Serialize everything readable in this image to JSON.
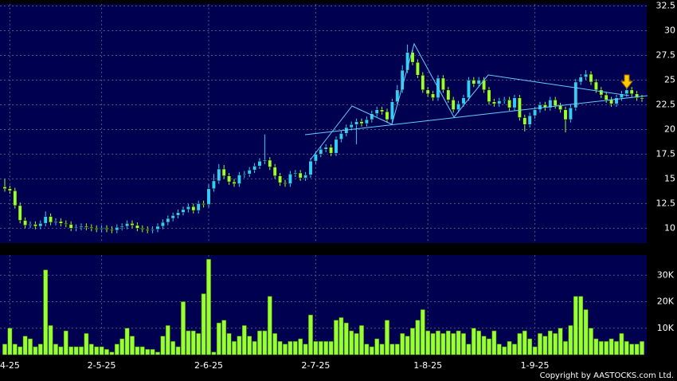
{
  "chart_data": {
    "type": "candlestick",
    "categories": [
      null,
      "4-25",
      null,
      null,
      null,
      null,
      null,
      null,
      null,
      null,
      null,
      null,
      null,
      null,
      null,
      null,
      null,
      null,
      null,
      "2-5-25",
      null,
      null,
      null,
      null,
      null,
      null,
      null,
      null,
      null,
      null,
      null,
      null,
      null,
      null,
      null,
      null,
      null,
      null,
      null,
      null,
      "2-6-25",
      null,
      null,
      null,
      null,
      null,
      null,
      null,
      null,
      null,
      null,
      null,
      null,
      null,
      null,
      null,
      null,
      null,
      null,
      null,
      null,
      "2-7-25",
      null,
      null,
      null,
      null,
      null,
      null,
      null,
      null,
      null,
      null,
      null,
      null,
      null,
      null,
      null,
      null,
      null,
      null,
      null,
      null,
      null,
      "1-8-25",
      null,
      null,
      null,
      null,
      null,
      null,
      null,
      null,
      null,
      null,
      null,
      null,
      null,
      null,
      null,
      null,
      null,
      null,
      null,
      null,
      "1-9-25",
      null,
      null,
      null,
      null,
      null,
      null,
      null,
      null,
      null,
      null,
      null,
      null,
      null,
      null,
      null,
      null,
      null,
      null,
      null,
      null,
      null
    ],
    "open": [
      14.2,
      14.0,
      13.8,
      12.3,
      10.8,
      10.3,
      10.4,
      10.2,
      10.5,
      11.2,
      10.6,
      10.7,
      10.5,
      10.4,
      10.0,
      10.1,
      10.2,
      10.1,
      10.0,
      9.9,
      10.0,
      9.9,
      9.8,
      10.1,
      10.2,
      10.5,
      10.3,
      10.0,
      9.9,
      9.8,
      9.9,
      10.2,
      10.6,
      11.0,
      11.3,
      11.6,
      11.9,
      12.2,
      11.8,
      12.5,
      12.4,
      14.0,
      14.8,
      16.0,
      15.3,
      14.7,
      14.5,
      15.4,
      15.5,
      15.9,
      16.3,
      16.8,
      16.9,
      16.2,
      15.3,
      14.6,
      14.5,
      15.5,
      15.6,
      15.1,
      15.4,
      16.8,
      17.5,
      18.0,
      18.2,
      17.6,
      19.0,
      19.6,
      20.2,
      20.5,
      20.8,
      20.6,
      21.0,
      21.6,
      22.0,
      21.8,
      21.0,
      22.8,
      24.0,
      26.0,
      27.8,
      26.8,
      25.5,
      24.0,
      23.6,
      23.2,
      25.2,
      24.0,
      23.0,
      22.0,
      22.6,
      23.2,
      25.0,
      24.6,
      25.0,
      24.0,
      22.8,
      22.6,
      22.9,
      23.0,
      22.2,
      23.2,
      21.2,
      20.5,
      21.4,
      22.0,
      22.5,
      22.2,
      23.0,
      22.4,
      22.0,
      21.0,
      22.2,
      24.8,
      25.3,
      25.6,
      24.8,
      24.0,
      23.5,
      23.0,
      22.6,
      23.2,
      23.6,
      24.0,
      23.6,
      23.2
    ],
    "high": [
      15.0,
      14.3,
      14.1,
      12.6,
      11.1,
      10.7,
      10.7,
      10.8,
      11.7,
      11.5,
      11.0,
      11.0,
      10.8,
      10.7,
      10.4,
      10.5,
      10.5,
      10.4,
      10.3,
      10.3,
      10.3,
      10.2,
      10.4,
      10.5,
      10.8,
      10.8,
      10.6,
      10.3,
      10.2,
      10.2,
      10.5,
      10.9,
      11.3,
      11.6,
      11.9,
      12.2,
      12.5,
      12.5,
      12.8,
      12.8,
      14.5,
      15.5,
      16.5,
      16.4,
      15.6,
      15.0,
      15.7,
      15.8,
      16.2,
      16.6,
      17.1,
      19.5,
      17.2,
      16.5,
      15.6,
      14.9,
      15.8,
      15.9,
      15.9,
      15.7,
      17.1,
      17.8,
      18.3,
      18.5,
      18.5,
      19.3,
      19.9,
      20.5,
      20.8,
      21.1,
      21.1,
      21.3,
      21.9,
      22.3,
      22.3,
      22.1,
      23.1,
      24.5,
      26.5,
      28.6,
      28.1,
      27.1,
      25.8,
      24.3,
      23.9,
      25.5,
      25.5,
      24.3,
      23.3,
      22.9,
      23.5,
      25.3,
      25.3,
      25.3,
      25.3,
      24.3,
      23.1,
      23.2,
      23.3,
      23.3,
      23.5,
      23.5,
      21.5,
      21.7,
      22.3,
      22.8,
      22.8,
      23.3,
      23.3,
      22.7,
      22.3,
      22.5,
      25.1,
      25.6,
      26.0,
      25.9,
      25.1,
      24.3,
      23.8,
      23.3,
      23.5,
      23.9,
      24.3,
      24.3,
      23.9,
      23.5
    ],
    "low": [
      13.7,
      13.5,
      12.0,
      10.5,
      10.0,
      10.0,
      9.9,
      9.9,
      10.2,
      10.3,
      10.3,
      10.2,
      10.1,
      9.7,
      9.7,
      9.8,
      9.8,
      9.7,
      9.6,
      9.6,
      9.6,
      9.5,
      9.5,
      9.8,
      9.9,
      10.0,
      9.7,
      9.6,
      9.5,
      9.5,
      9.6,
      9.9,
      10.3,
      10.7,
      11.0,
      11.3,
      11.6,
      11.5,
      11.5,
      12.1,
      12.1,
      13.7,
      14.5,
      15.0,
      14.4,
      14.2,
      14.2,
      15.1,
      15.2,
      15.6,
      16.0,
      16.5,
      15.9,
      15.0,
      14.3,
      14.2,
      14.2,
      15.2,
      14.8,
      14.8,
      15.1,
      16.5,
      17.2,
      17.7,
      17.3,
      17.3,
      18.7,
      19.3,
      19.9,
      18.5,
      20.3,
      20.3,
      20.7,
      21.3,
      21.5,
      20.7,
      20.7,
      22.5,
      23.7,
      25.7,
      26.5,
      25.2,
      23.7,
      23.3,
      22.9,
      22.9,
      23.7,
      22.7,
      21.7,
      21.7,
      22.3,
      22.9,
      24.3,
      24.3,
      23.7,
      22.5,
      22.3,
      22.3,
      22.6,
      21.9,
      21.9,
      20.9,
      19.8,
      20.2,
      21.1,
      21.7,
      21.9,
      21.9,
      22.1,
      21.7,
      19.7,
      20.7,
      21.9,
      24.5,
      25.0,
      24.5,
      23.7,
      23.2,
      22.7,
      22.3,
      22.3,
      22.9,
      23.3,
      23.3,
      22.9,
      22.8
    ],
    "close": [
      14.0,
      13.8,
      12.3,
      10.8,
      10.3,
      10.4,
      10.2,
      10.5,
      11.2,
      10.6,
      10.7,
      10.5,
      10.4,
      10.0,
      10.1,
      10.2,
      10.1,
      10.0,
      9.9,
      10.0,
      9.9,
      9.8,
      10.1,
      10.2,
      10.5,
      10.3,
      10.0,
      9.9,
      9.8,
      9.9,
      10.2,
      10.6,
      11.0,
      11.3,
      11.6,
      11.9,
      12.2,
      11.8,
      12.5,
      12.4,
      14.0,
      14.8,
      16.0,
      15.3,
      14.7,
      14.5,
      15.4,
      15.5,
      15.9,
      16.3,
      16.8,
      16.9,
      16.2,
      15.3,
      14.6,
      14.5,
      15.5,
      15.6,
      15.1,
      15.4,
      16.8,
      17.5,
      18.0,
      18.2,
      17.6,
      19.0,
      19.6,
      20.2,
      20.5,
      20.8,
      20.6,
      21.0,
      21.6,
      22.0,
      21.8,
      21.0,
      22.8,
      24.0,
      26.0,
      27.8,
      26.8,
      25.5,
      24.0,
      23.6,
      23.2,
      25.2,
      24.0,
      23.0,
      22.0,
      22.6,
      23.2,
      25.0,
      24.6,
      25.0,
      24.0,
      22.8,
      22.6,
      22.9,
      23.0,
      22.2,
      23.2,
      21.2,
      20.5,
      21.4,
      22.0,
      22.5,
      22.2,
      23.0,
      22.4,
      22.0,
      21.0,
      22.2,
      24.8,
      25.3,
      25.6,
      24.8,
      24.0,
      23.5,
      23.0,
      22.6,
      23.2,
      23.6,
      24.0,
      23.6,
      23.2,
      23.1
    ],
    "up_color": "#33ccff",
    "down_color": "#99ff33",
    "ylim": [
      8.5,
      32.7
    ],
    "yticks": [
      10,
      12.5,
      15,
      17.5,
      20,
      22.5,
      25,
      27.5,
      30,
      32.5
    ],
    "grid": true,
    "volume": {
      "type": "bar",
      "color": "#99ff33",
      "values": [
        4,
        10,
        4,
        3,
        7,
        6,
        3,
        4,
        32,
        11,
        4,
        3,
        9,
        3,
        3,
        3,
        8,
        4,
        3,
        3,
        2,
        1,
        4,
        6,
        10,
        7,
        3,
        3,
        2,
        2,
        1,
        7,
        11,
        5,
        3,
        20,
        9,
        9,
        8,
        23,
        36,
        1,
        12,
        13,
        8,
        5,
        7,
        11,
        7,
        5,
        9,
        9,
        22,
        8,
        5,
        4,
        5,
        5,
        6,
        4,
        15,
        5,
        5,
        5,
        5,
        13,
        14,
        12,
        9,
        8,
        11,
        4,
        3,
        6,
        4,
        13,
        4,
        4,
        8,
        7,
        10,
        13,
        17,
        9,
        8,
        9,
        8,
        9,
        8,
        9,
        8,
        4,
        10,
        9,
        7,
        6,
        9,
        4,
        3,
        5,
        4,
        8,
        9,
        6,
        3,
        8,
        7,
        9,
        8,
        10,
        5,
        11,
        22,
        22,
        17,
        10,
        6,
        5,
        5,
        6,
        5,
        8,
        5,
        4,
        4,
        5
      ],
      "ylim": [
        0,
        37.6
      ],
      "yticks": [
        {
          "value": 10,
          "label": "10K"
        },
        {
          "value": 20,
          "label": "20K"
        },
        {
          "value": 30,
          "label": "30K"
        }
      ]
    }
  },
  "footer": "Copyright by AASTOCKS.com Ltd."
}
